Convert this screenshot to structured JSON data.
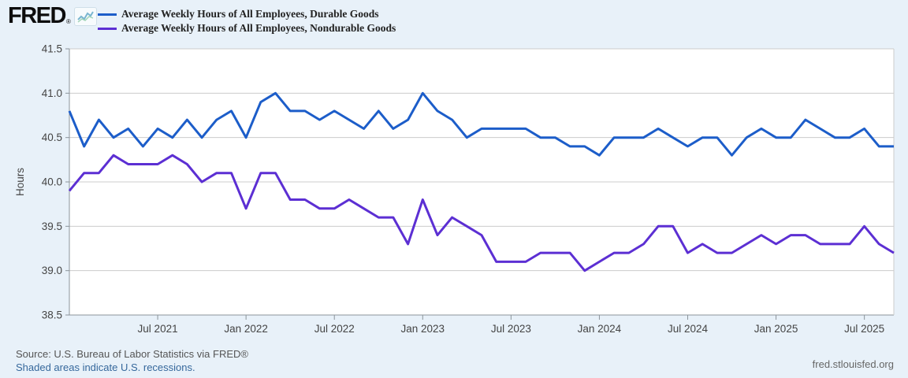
{
  "header": {
    "logo_text": "FRED",
    "logo_mark": "®"
  },
  "footer": {
    "source": "Source: U.S. Bureau of Labor Statistics via FRED®",
    "recession_note": "Shaded areas indicate U.S. recessions.",
    "site": "fred.stlouisfed.org"
  },
  "chart_data": {
    "type": "line",
    "title": "",
    "ylabel": "Hours",
    "grid": true,
    "legend_position": "top",
    "ylim": [
      38.5,
      41.5
    ],
    "y_tick_labels": [
      "41.5",
      "41.0",
      "40.5",
      "40.0",
      "39.5",
      "39.0",
      "38.5"
    ],
    "x_start_month": "2021-01",
    "x_end_month": "2025-09",
    "x_ticks": [
      {
        "label": "Jul 2021",
        "month_index": 6
      },
      {
        "label": "Jan 2022",
        "month_index": 12
      },
      {
        "label": "Jul 2022",
        "month_index": 18
      },
      {
        "label": "Jan 2023",
        "month_index": 24
      },
      {
        "label": "Jul 2023",
        "month_index": 30
      },
      {
        "label": "Jan 2024",
        "month_index": 36
      },
      {
        "label": "Jul 2024",
        "month_index": 42
      },
      {
        "label": "Jan 2025",
        "month_index": 48
      },
      {
        "label": "Jul 2025",
        "month_index": 54
      }
    ],
    "series": [
      {
        "name": "Average Weekly Hours of All Employees, Durable Goods",
        "color": "#1c5dc9",
        "values": [
          40.8,
          40.4,
          40.7,
          40.5,
          40.6,
          40.4,
          40.6,
          40.5,
          40.7,
          40.5,
          40.7,
          40.8,
          40.5,
          40.9,
          41.0,
          40.8,
          40.8,
          40.7,
          40.8,
          40.7,
          40.6,
          40.8,
          40.6,
          40.7,
          41.0,
          40.8,
          40.7,
          40.5,
          40.6,
          40.6,
          40.6,
          40.6,
          40.5,
          40.5,
          40.4,
          40.4,
          40.3,
          40.5,
          40.5,
          40.5,
          40.6,
          40.5,
          40.4,
          40.5,
          40.5,
          40.3,
          40.5,
          40.6,
          40.5,
          40.5,
          40.7,
          40.6,
          40.5,
          40.5,
          40.6,
          40.4,
          40.4
        ]
      },
      {
        "name": "Average Weekly Hours of All Employees, Nondurable Goods",
        "color": "#5c2fd3",
        "values": [
          39.9,
          40.1,
          40.1,
          40.3,
          40.2,
          40.2,
          40.2,
          40.3,
          40.2,
          40.0,
          40.1,
          40.1,
          39.7,
          40.1,
          40.1,
          39.8,
          39.8,
          39.7,
          39.7,
          39.8,
          39.7,
          39.6,
          39.6,
          39.3,
          39.8,
          39.4,
          39.6,
          39.5,
          39.4,
          39.1,
          39.1,
          39.1,
          39.2,
          39.2,
          39.2,
          39.0,
          39.1,
          39.2,
          39.2,
          39.3,
          39.5,
          39.5,
          39.2,
          39.3,
          39.2,
          39.2,
          39.3,
          39.4,
          39.3,
          39.4,
          39.4,
          39.3,
          39.3,
          39.3,
          39.5,
          39.3,
          39.2
        ]
      }
    ],
    "colors": {
      "page_background": "#e8f1f9",
      "plot_background": "#ffffff",
      "gridline": "#cccccc",
      "axis": "#8b949b",
      "tick_text": "#444444"
    }
  }
}
